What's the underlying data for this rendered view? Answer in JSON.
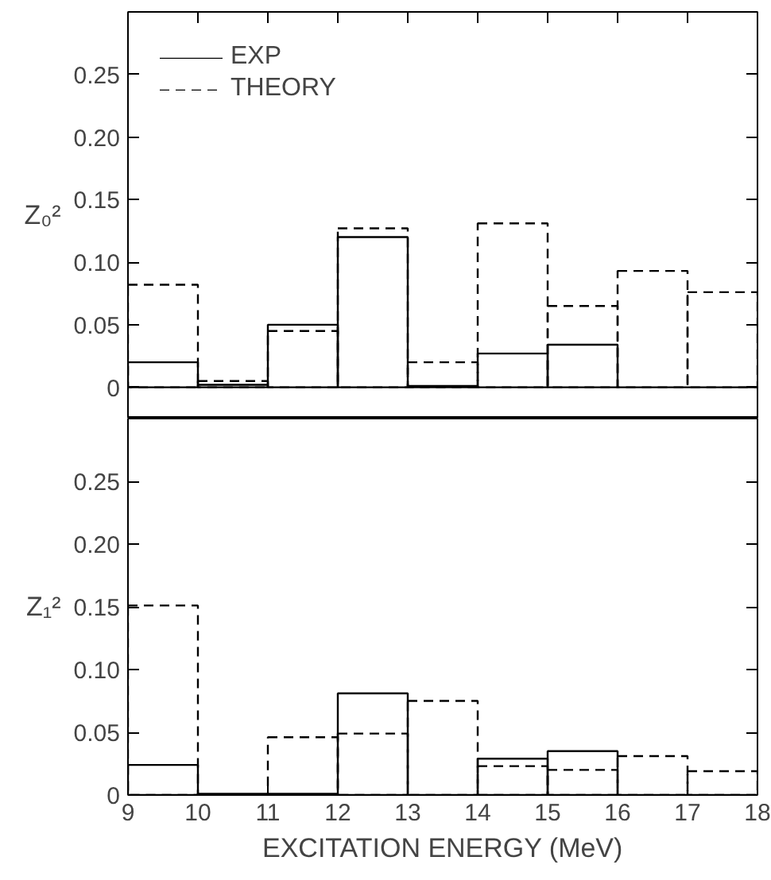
{
  "chart_data": [
    {
      "type": "histogram",
      "ylabel": "Z₀²",
      "bins": [
        9,
        10,
        11,
        12,
        13,
        14,
        15,
        16,
        17,
        18
      ],
      "xlim": [
        9,
        18
      ],
      "xticks": [
        9,
        10,
        11,
        12,
        13,
        14,
        15,
        16,
        17,
        18
      ],
      "ylim": [
        -0.025,
        0.3
      ],
      "yticks": [
        {
          "value": 0,
          "label": "0"
        },
        0.05,
        {
          "value": 0.1,
          "label": "0.10"
        },
        0.15,
        {
          "value": 0.2,
          "label": "0.20"
        },
        0.25
      ],
      "tick_labels": "y",
      "legend": "top left",
      "grid": false,
      "series": [
        {
          "name": "EXP",
          "color": "#000000",
          "line_style": "solid",
          "values": [
            0.02,
            0.002,
            0.05,
            0.12,
            0.001,
            0.027,
            0.034,
            0,
            0
          ]
        },
        {
          "name": "THEORY",
          "color": "#000000",
          "line_style": "dashed",
          "values": [
            0.082,
            0.005,
            0.045,
            0.127,
            0.02,
            0.131,
            0.065,
            0.093,
            0.076
          ]
        }
      ]
    },
    {
      "type": "histogram",
      "ylabel": "Z₁²",
      "xlabel": "EXCITATION ENERGY (MeV)",
      "bins": [
        9,
        10,
        11,
        12,
        13,
        14,
        15,
        16,
        17,
        18
      ],
      "xlim": [
        9,
        18
      ],
      "xticks": [
        9,
        10,
        11,
        12,
        13,
        14,
        15,
        16,
        17,
        18
      ],
      "ylim": [
        0,
        0.3
      ],
      "yticks": [
        {
          "value": 0,
          "label": "0"
        },
        0.05,
        {
          "value": 0.1,
          "label": "0.10"
        },
        0.15,
        {
          "value": 0.2,
          "label": "0.20"
        },
        0.25
      ],
      "grid": false,
      "series": [
        {
          "color": "#000000",
          "line_style": "solid",
          "values": [
            0.024,
            0.001,
            0.001,
            0.081,
            0,
            0.029,
            0.035,
            0,
            0
          ]
        },
        {
          "color": "#000000",
          "line_style": "dashed",
          "values": [
            0.151,
            0,
            0.046,
            0.049,
            0.075,
            0.023,
            0.02,
            0.031,
            0.019
          ]
        }
      ]
    }
  ]
}
